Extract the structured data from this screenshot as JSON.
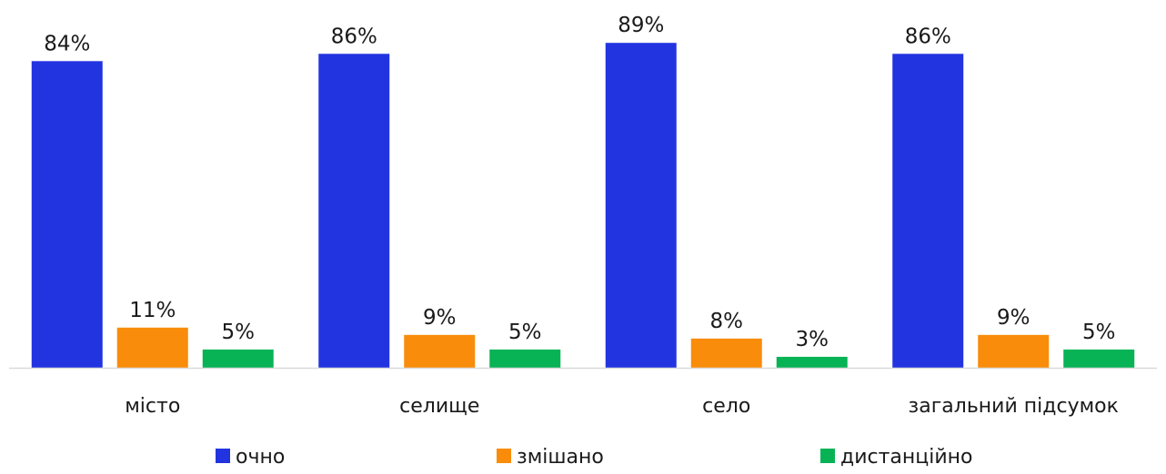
{
  "chart_data": {
    "type": "bar",
    "categories": [
      "місто",
      "селище",
      "село",
      "загальний підсумок"
    ],
    "series": [
      {
        "name": "очно",
        "values": [
          84,
          86,
          89,
          86
        ],
        "labels": [
          "84%",
          "86%",
          "89%",
          "86%"
        ],
        "color": "#2234E0"
      },
      {
        "name": "змішано",
        "values": [
          11,
          9,
          8,
          9
        ],
        "labels": [
          "11%",
          "9%",
          "8%",
          "9%"
        ],
        "color": "#F98C0A"
      },
      {
        "name": "дистанційно",
        "values": [
          5,
          5,
          3,
          5
        ],
        "labels": [
          "5%",
          "5%",
          "3%",
          "5%"
        ],
        "color": "#08B355"
      }
    ],
    "title": "",
    "xlabel": "",
    "ylabel": "",
    "ylim": [
      0,
      100
    ],
    "grid": false,
    "legend_position": "bottom",
    "axis_line_color": "#d9d9d9"
  }
}
